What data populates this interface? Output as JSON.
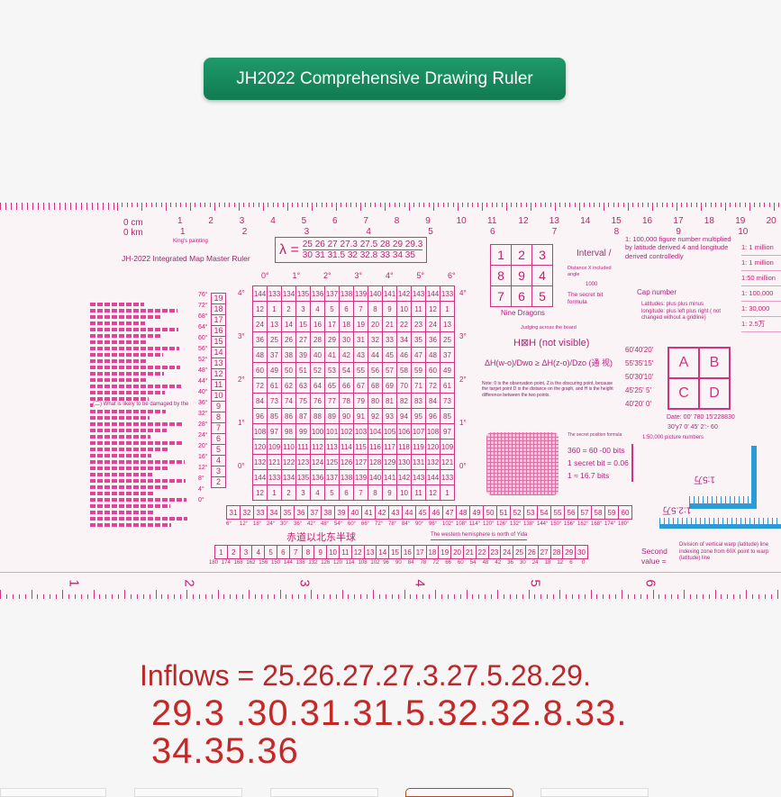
{
  "title": "JH2022 Comprehensive Drawing Ruler",
  "ruler": {
    "name": "JH-2022 Integrated Map Master Ruler",
    "kings_painting": "King's painting",
    "cm_label": "0 cm",
    "km_label": "0 km",
    "cm_ticks": [
      "1",
      "2",
      "3",
      "4",
      "5",
      "6",
      "7",
      "8",
      "9",
      "10",
      "11",
      "12",
      "13",
      "14",
      "15",
      "16",
      "17",
      "18",
      "19",
      "20"
    ],
    "km_ticks": [
      "1",
      "2",
      "3",
      "4",
      "5",
      "6",
      "7",
      "8",
      "9",
      "10"
    ],
    "lambda": {
      "symbol": "λ =",
      "top": "25  26  27  27.3  27.5  28  29  29.3",
      "bottom": "30  31  31.5  32  32.8  33  34  35"
    },
    "degree_header": [
      "0°",
      "1°",
      "2°",
      "3°",
      "4°",
      "5°",
      "6°"
    ],
    "grid_rows": [
      [
        144,
        133,
        134,
        135,
        136,
        137,
        138,
        139,
        140,
        141,
        142,
        143,
        144,
        133
      ],
      [
        12,
        1,
        2,
        3,
        4,
        5,
        6,
        7,
        8,
        9,
        10,
        11,
        12,
        1
      ],
      [
        24,
        13,
        14,
        15,
        16,
        17,
        18,
        19,
        20,
        21,
        22,
        23,
        24,
        13
      ],
      [
        36,
        25,
        26,
        27,
        28,
        29,
        30,
        31,
        32,
        33,
        34,
        35,
        36,
        25
      ],
      [
        48,
        37,
        38,
        39,
        40,
        41,
        42,
        43,
        44,
        45,
        46,
        47,
        48,
        37
      ],
      [
        60,
        49,
        50,
        51,
        52,
        53,
        54,
        55,
        56,
        57,
        58,
        59,
        60,
        49
      ],
      [
        72,
        61,
        62,
        63,
        64,
        65,
        66,
        67,
        68,
        69,
        70,
        71,
        72,
        61
      ],
      [
        84,
        73,
        74,
        75,
        76,
        77,
        78,
        79,
        80,
        81,
        82,
        83,
        84,
        73
      ],
      [
        96,
        85,
        86,
        87,
        88,
        89,
        90,
        91,
        92,
        93,
        94,
        95,
        96,
        85
      ],
      [
        108,
        97,
        98,
        99,
        100,
        101,
        102,
        103,
        104,
        105,
        106,
        107,
        108,
        97
      ],
      [
        120,
        109,
        110,
        111,
        112,
        113,
        114,
        115,
        116,
        117,
        118,
        119,
        120,
        109
      ],
      [
        132,
        121,
        122,
        123,
        124,
        125,
        126,
        127,
        128,
        129,
        130,
        131,
        132,
        121
      ],
      [
        144,
        133,
        134,
        135,
        136,
        137,
        138,
        139,
        140,
        141,
        142,
        143,
        144,
        133
      ],
      [
        12,
        1,
        2,
        3,
        4,
        5,
        6,
        7,
        8,
        9,
        10,
        11,
        12,
        1
      ]
    ],
    "zone_column": [
      "19",
      "18",
      "17",
      "16",
      "15",
      "14",
      "13",
      "12",
      "11",
      "10",
      "9",
      "8",
      "7",
      "6",
      "5",
      "4",
      "3",
      "2"
    ],
    "latitudes": [
      "76°",
      "72°",
      "68°",
      "64°",
      "60°",
      "56°",
      "52°",
      "48°",
      "44°",
      "40°",
      "36°",
      "32°",
      "28°",
      "24°",
      "20°",
      "16°",
      "12°",
      "8°",
      "4°",
      "0°"
    ],
    "side_degrees": [
      "4°",
      "3°",
      "2°",
      "1°",
      "0°"
    ],
    "text_block_heading": "(二) What is likely to be damaged by the",
    "zone_row_1": [
      "31",
      "32",
      "33",
      "34",
      "35",
      "36",
      "37",
      "38",
      "39",
      "40",
      "41",
      "42",
      "43",
      "44",
      "45",
      "46",
      "47",
      "48",
      "49",
      "50",
      "51",
      "52",
      "53",
      "54",
      "55",
      "56",
      "57",
      "58",
      "59",
      "60"
    ],
    "zone_row_1_deg": [
      "6°",
      "12°",
      "18°",
      "24°",
      "30°",
      "36°",
      "42°",
      "48°",
      "54°",
      "60°",
      "66°",
      "72°",
      "78°",
      "84°",
      "90°",
      "96°",
      "102°",
      "108°",
      "114°",
      "120°",
      "126°",
      "132°",
      "138°",
      "144°",
      "150°",
      "156°",
      "162°",
      "168°",
      "174°",
      "180°"
    ],
    "hemisphere_cn": "赤道以北东半球",
    "western_note": "The western hemisphere is north of Yida",
    "zone_row_2": [
      "1",
      "2",
      "3",
      "4",
      "5",
      "6",
      "7",
      "8",
      "9",
      "10",
      "11",
      "12",
      "13",
      "14",
      "15",
      "16",
      "17",
      "18",
      "19",
      "20",
      "21",
      "22",
      "23",
      "24",
      "25",
      "26",
      "27",
      "28",
      "29",
      "30"
    ],
    "zone_row_2_deg": [
      "180",
      "174",
      "168",
      "162",
      "156",
      "150",
      "144",
      "138",
      "132",
      "126",
      "120",
      "114",
      "108",
      "102",
      "96",
      "90",
      "84",
      "78",
      "72",
      "66",
      "60",
      "54",
      "48",
      "42",
      "36",
      "30",
      "24",
      "18",
      "12",
      "6",
      "0"
    ],
    "nine_dragons": {
      "cells": [
        [
          "1",
          "2",
          "3"
        ],
        [
          "8",
          "9",
          "4"
        ],
        [
          "7",
          "6",
          "5"
        ]
      ],
      "label": "Nine Dragons"
    },
    "interval": "Interval /",
    "distance_note": "Distance X  included angle",
    "thousand": "1000",
    "secret_formula": "The secret bit formula",
    "judging": "Judging across the board",
    "visibility_title": "H⊠H (not visible)",
    "visibility_formula": "ΔH(w-o)/Dwo ≥ ΔH(z-o)/Dzo (通 视)",
    "visibility_note": "Note: 0 is the observation point, Z is the obscuring point, because the target point D is the distance on the graph, and H is the height difference between the two points.",
    "figure_note": "1: 100,000 figure number multiplied by latitude derived 4 and longitude derived controlledly",
    "cap_number": "Cap number",
    "cap_note": "Latitudes: plus plus minus longitude: plus left plus right ( not changed without a gridline)",
    "abcd_rows": [
      "60′40′20′",
      "55′35′15′",
      "50′30′10′",
      "45′25′ 5′",
      "40′20′ 0′"
    ],
    "abcd_letters": [
      "A",
      "B",
      "C",
      "D"
    ],
    "date_line": "Date: 00′ 780 15′228830",
    "date_line_2": "30′y7 0′ 45′ 2′:- 60",
    "pic_numbers": "1:50,000 picture numbers",
    "scales": [
      "1: 1 million",
      "1: 1 million",
      "1:50 million",
      "1: 100,000",
      "1: 30,000",
      "1: 2.5万"
    ],
    "secret_position": "The secret position formula",
    "secret_lines": [
      "360 = 60 -00 bits",
      "1 secret bit = 0.06",
      "1 ≈ 16.7 bits"
    ],
    "scale_15": "1:5万",
    "scale_125": "1:2.5万",
    "second_value": "Second value =",
    "division_note": "Division of vertical warp (latitude) line indexing zone from 60X point to warp (latitude) line",
    "bottom_scale": [
      "1",
      "2",
      "3",
      "4",
      "5",
      "6"
    ]
  },
  "caption": {
    "line1": "Inflows = 25.26.27.27.3.27.5.28.29.",
    "line2": "29.3 .30.31.31.5.32.32.8.33.",
    "line3": "34.35.36"
  },
  "colors": {
    "ruler_pink": "#d2337f",
    "title_green": "#148a5e",
    "caption_red": "#c62828",
    "ruler_blue": "#2a9ad8"
  }
}
